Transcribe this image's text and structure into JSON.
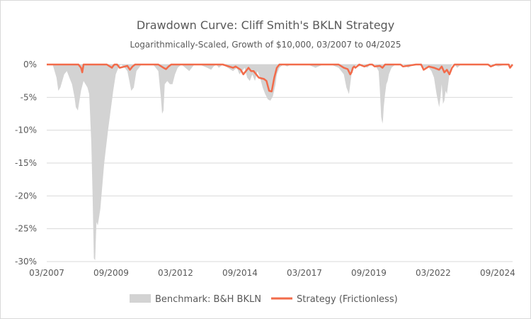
{
  "chart_data": {
    "type": "area",
    "title": "Drawdown Curve: Cliff Smith's BKLN Strategy",
    "subtitle": "Logarithmically-Scaled, Growth of $10,000, 03/2007 to 04/2025",
    "xlabel": "",
    "ylabel": "",
    "xlim": [
      2007.17,
      2025.25
    ],
    "ylim": [
      -30,
      0
    ],
    "y_ticks": [
      0,
      -5,
      -10,
      -15,
      -20,
      -25,
      -30
    ],
    "y_tick_labels": [
      "0%",
      "-5%",
      "-10%",
      "-15%",
      "-20%",
      "-25%",
      "-30%"
    ],
    "x_ticks": [
      2007.17,
      2009.67,
      2012.17,
      2014.67,
      2017.17,
      2019.67,
      2022.17,
      2024.67
    ],
    "x_tick_labels": [
      "03/2007",
      "09/2009",
      "03/2012",
      "09/2014",
      "03/2017",
      "09/2019",
      "03/2022",
      "09/2024"
    ],
    "grid": "horizontal",
    "legend": "bottom",
    "series": [
      {
        "name": "Benchmark: B&H BKLN",
        "type": "area",
        "color": "#d3d3d3",
        "x": [
          2007.17,
          2007.4,
          2007.55,
          2007.62,
          2007.7,
          2007.85,
          2007.95,
          2008.05,
          2008.15,
          2008.25,
          2008.3,
          2008.38,
          2008.5,
          2008.6,
          2008.75,
          2008.82,
          2008.9,
          2008.95,
          2009.0,
          2009.05,
          2009.1,
          2009.15,
          2009.25,
          2009.4,
          2009.55,
          2009.65,
          2009.75,
          2009.85,
          2009.95,
          2010.05,
          2010.15,
          2010.3,
          2010.4,
          2010.45,
          2010.55,
          2010.65,
          2010.75,
          2010.85,
          2011.0,
          2011.3,
          2011.5,
          2011.6,
          2011.65,
          2011.7,
          2011.75,
          2011.85,
          2011.95,
          2012.05,
          2012.15,
          2012.25,
          2012.4,
          2012.55,
          2012.7,
          2012.8,
          2012.9,
          2013.1,
          2013.4,
          2013.55,
          2013.65,
          2013.75,
          2013.85,
          2014.0,
          2014.2,
          2014.4,
          2014.55,
          2014.65,
          2014.75,
          2014.85,
          2014.95,
          2015.05,
          2015.15,
          2015.25,
          2015.35,
          2015.45,
          2015.55,
          2015.65,
          2015.75,
          2015.85,
          2015.95,
          2016.05,
          2016.1,
          2016.2,
          2016.35,
          2016.5,
          2016.65,
          2016.8,
          2017.0,
          2017.3,
          2017.6,
          2017.9,
          2018.2,
          2018.5,
          2018.7,
          2018.8,
          2018.9,
          2018.95,
          2019.0,
          2019.05,
          2019.1,
          2019.2,
          2019.3,
          2019.45,
          2019.6,
          2019.75,
          2019.9,
          2020.05,
          2020.1,
          2020.15,
          2020.2,
          2020.22,
          2020.25,
          2020.3,
          2020.35,
          2020.4,
          2020.45,
          2020.55,
          2020.7,
          2020.85,
          2021.0,
          2021.2,
          2021.4,
          2021.6,
          2021.8,
          2022.0,
          2022.1,
          2022.2,
          2022.3,
          2022.4,
          2022.45,
          2022.5,
          2022.55,
          2022.6,
          2022.65,
          2022.7,
          2022.75,
          2022.8,
          2022.85,
          2022.9,
          2023.0,
          2023.1,
          2023.25,
          2023.5,
          2023.8,
          2024.1,
          2024.4,
          2024.7,
          2025.0,
          2025.1,
          2025.17,
          2025.25
        ],
        "values": [
          0,
          0,
          -2.0,
          -4.0,
          -3.5,
          -1.5,
          -1.0,
          -2.0,
          -3.0,
          -5.0,
          -6.5,
          -7.0,
          -4.0,
          -2.5,
          -3.5,
          -4.5,
          -12.0,
          -20.0,
          -29.5,
          -29.8,
          -24.0,
          -24.5,
          -22.0,
          -15.0,
          -10.0,
          -7.0,
          -4.0,
          -1.5,
          -0.5,
          0,
          -0.3,
          -1.0,
          -3.0,
          -4.0,
          -3.5,
          -1.0,
          -0.5,
          0,
          0,
          0,
          -1.0,
          -5.0,
          -7.5,
          -7.0,
          -3.0,
          -2.5,
          -3.0,
          -3.0,
          -1.5,
          -0.5,
          0,
          -0.5,
          -1.0,
          -0.5,
          0,
          0,
          -0.5,
          -0.8,
          -0.3,
          0,
          -0.5,
          0,
          -0.5,
          -1.0,
          -0.5,
          -1.5,
          -1.0,
          -0.5,
          -2.0,
          -2.5,
          -1.5,
          -2.5,
          -1.0,
          -2.0,
          -3.5,
          -4.5,
          -5.3,
          -5.5,
          -4.8,
          -3.0,
          -1.5,
          -0.5,
          0,
          -0.3,
          0,
          0,
          0,
          0,
          -0.5,
          0,
          0,
          -0.5,
          -1.5,
          -3.5,
          -4.5,
          -3.0,
          -1.5,
          -1.0,
          -0.5,
          0,
          -0.3,
          0,
          -0.5,
          0,
          0,
          -1.0,
          -4.0,
          -8.0,
          -9.0,
          -8.5,
          -6.5,
          -4.5,
          -3.0,
          -2.5,
          -1.5,
          -0.5,
          0,
          0,
          0,
          -0.5,
          0,
          0,
          -0.5,
          -0.5,
          -1.0,
          -2.0,
          -4.5,
          -6.5,
          -5.0,
          -3.0,
          -6.0,
          -5.5,
          -4.0,
          -4.5,
          -3.0,
          -1.5,
          -0.5,
          0,
          0,
          -0.5,
          0,
          0,
          0,
          0,
          0,
          -0.3,
          0,
          0,
          0,
          0
        ]
      },
      {
        "name": "Strategy (Frictionless)",
        "type": "line",
        "color": "#f26b4a",
        "x": [
          2007.17,
          2008.0,
          2008.4,
          2008.5,
          2008.55,
          2008.6,
          2008.7,
          2009.0,
          2009.5,
          2009.7,
          2009.75,
          2009.8,
          2009.9,
          2010.0,
          2010.2,
          2010.3,
          2010.4,
          2010.5,
          2010.6,
          2010.7,
          2011.0,
          2011.5,
          2011.7,
          2011.8,
          2011.9,
          2012.0,
          2012.3,
          2013.0,
          2013.5,
          2014.0,
          2014.4,
          2014.5,
          2014.7,
          2014.8,
          2014.9,
          2015.0,
          2015.1,
          2015.2,
          2015.4,
          2015.5,
          2015.6,
          2015.7,
          2015.8,
          2015.9,
          2016.0,
          2016.1,
          2016.2,
          2016.3,
          2016.5,
          2017.0,
          2017.3,
          2017.6,
          2018.0,
          2018.5,
          2018.7,
          2018.85,
          2018.95,
          2019.0,
          2019.05,
          2019.1,
          2019.15,
          2019.3,
          2019.5,
          2019.7,
          2019.8,
          2019.9,
          2020.1,
          2020.2,
          2020.3,
          2020.5,
          2020.7,
          2020.9,
          2021.0,
          2021.5,
          2021.7,
          2021.8,
          2022.0,
          2022.2,
          2022.4,
          2022.5,
          2022.6,
          2022.7,
          2022.8,
          2022.9,
          2023.0,
          2023.3,
          2023.6,
          2024.0,
          2024.3,
          2024.4,
          2024.6,
          2025.0,
          2025.1,
          2025.15,
          2025.25
        ],
        "values": [
          0,
          0,
          0,
          -0.5,
          -1.2,
          0,
          0,
          0,
          0,
          -0.5,
          -0.2,
          0,
          0,
          -0.5,
          -0.3,
          -0.2,
          -0.8,
          -0.3,
          0,
          0,
          0,
          0,
          -0.5,
          -0.7,
          -0.3,
          0,
          0,
          0,
          0,
          0,
          -0.5,
          -0.3,
          -0.8,
          -1.5,
          -1.0,
          -0.5,
          -1.0,
          -1.0,
          -2.0,
          -2.1,
          -2.2,
          -2.5,
          -4.0,
          -4.1,
          -2.0,
          -0.5,
          0,
          0,
          0,
          0,
          0,
          0,
          0,
          0,
          -0.5,
          -0.7,
          -1.5,
          -1.2,
          -0.5,
          -0.3,
          -0.5,
          0,
          -0.3,
          0,
          0,
          -0.3,
          -0.2,
          -0.5,
          0,
          0,
          0,
          0,
          -0.3,
          0,
          0,
          -0.8,
          -0.3,
          -0.5,
          -0.8,
          -0.3,
          -1.2,
          -0.8,
          -1.5,
          -0.5,
          0,
          0,
          0,
          0,
          0,
          -0.3,
          0,
          0,
          0,
          -0.5,
          0
        ]
      }
    ]
  },
  "legend": {
    "benchmark_label": "Benchmark: B&H BKLN",
    "strategy_label": "Strategy (Frictionless)"
  }
}
